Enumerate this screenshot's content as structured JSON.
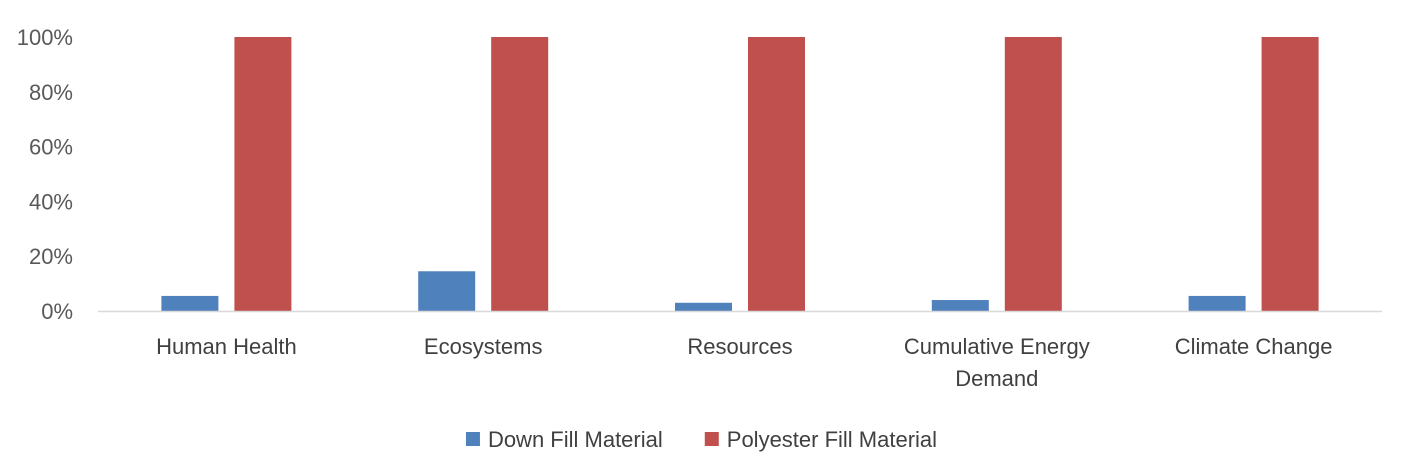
{
  "chart_data": {
    "type": "bar",
    "title": "",
    "xlabel": "",
    "ylabel": "",
    "categories": [
      [
        "Human Health"
      ],
      [
        "Ecosystems"
      ],
      [
        "Resources"
      ],
      [
        "Cumulative Energy",
        "Demand"
      ],
      [
        "Climate Change"
      ]
    ],
    "series": [
      {
        "name": "Down Fill Material",
        "color": "#4F81BD",
        "values": [
          5.5,
          14.5,
          3,
          4,
          5.5
        ]
      },
      {
        "name": "Polyester Fill Material",
        "color": "#C0504D",
        "values": [
          100,
          100,
          100,
          100,
          100
        ]
      }
    ],
    "ylim": [
      0,
      100
    ],
    "yticks": [
      "0%",
      "20%",
      "40%",
      "60%",
      "80%",
      "100%"
    ],
    "ytick_values": [
      0,
      20,
      40,
      60,
      80,
      100
    ],
    "grid": false,
    "legend_position": "bottom"
  }
}
